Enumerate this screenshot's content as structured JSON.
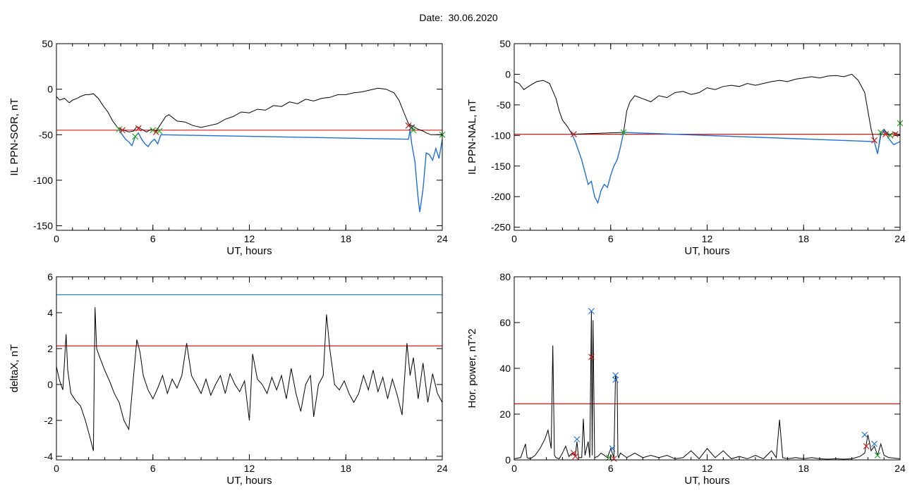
{
  "page": {
    "title": "Date:  30.06.2020"
  },
  "colors": {
    "black": "#000000",
    "blue": "#1f6fd6",
    "red": "#d41a1a",
    "green": "#22aa22",
    "teal": "#2a8aa8"
  },
  "chart_data": [
    {
      "type": "line",
      "xlabel": "UT, hours",
      "ylabel": "IL PPN-SOR, nT",
      "xlim": [
        0,
        24
      ],
      "ylim": [
        -155,
        50
      ],
      "xticks": [
        0,
        6,
        12,
        18,
        24
      ],
      "yticks": [
        -150,
        -100,
        -50,
        0,
        50
      ],
      "series": [
        {
          "color": "#000000",
          "x": [
            0,
            0.2,
            0.5,
            0.8,
            1.0,
            1.3,
            1.5,
            1.8,
            2.0,
            2.3,
            2.6,
            2.9,
            3.2,
            3.5,
            3.8,
            4.0,
            4.2,
            4.5,
            4.8,
            5.0,
            5.3,
            5.6,
            5.9,
            6.2,
            6.5,
            6.8,
            7.0,
            7.5,
            8.0,
            8.5,
            9.0,
            9.5,
            10.0,
            10.5,
            11.0,
            11.5,
            12.0,
            12.5,
            13.0,
            13.5,
            14.0,
            14.5,
            15.0,
            15.5,
            16.0,
            16.5,
            17.0,
            17.5,
            18.0,
            18.5,
            19.0,
            19.5,
            20.0,
            20.5,
            21.0,
            21.3,
            21.6,
            21.9,
            22.1,
            22.3,
            22.5,
            22.8,
            23.0,
            23.3,
            23.6,
            24.0
          ],
          "y": [
            -8,
            -12,
            -10,
            -15,
            -12,
            -10,
            -8,
            -6,
            -6,
            -5,
            -10,
            -18,
            -25,
            -35,
            -42,
            -44,
            -45,
            -47,
            -46,
            -41,
            -44,
            -47,
            -44,
            -46,
            -38,
            -30,
            -28,
            -35,
            -36,
            -40,
            -42,
            -40,
            -38,
            -33,
            -30,
            -25,
            -26,
            -22,
            -23,
            -18,
            -19,
            -14,
            -16,
            -11,
            -13,
            -10,
            -9,
            -6,
            -6,
            -4,
            -3,
            -1,
            1,
            0,
            -4,
            -12,
            -25,
            -38,
            -40,
            -42,
            -44,
            -46,
            -48,
            -50,
            -50,
            -50
          ]
        },
        {
          "color": "#1f6fd6",
          "x": [
            3.9,
            4.1,
            4.3,
            4.5,
            4.7,
            4.9,
            5.1,
            5.3,
            5.5,
            5.7,
            5.9,
            6.1,
            6.3,
            6.5,
            21.9,
            22.0,
            22.1,
            22.2,
            22.3,
            22.4,
            22.5,
            22.6,
            22.8,
            23.0,
            23.2,
            23.4,
            23.6,
            23.8,
            24.0
          ],
          "y": [
            -45,
            -50,
            -55,
            -58,
            -62,
            -52,
            -48,
            -55,
            -60,
            -63,
            -58,
            -55,
            -60,
            -50,
            -55,
            -45,
            -60,
            -70,
            -80,
            -100,
            -120,
            -135,
            -110,
            -70,
            -72,
            -78,
            -65,
            -76,
            -55
          ]
        }
      ],
      "hlines": [
        {
          "y": -45,
          "color": "#d41a1a"
        }
      ],
      "markers": [
        {
          "x": 3.9,
          "y": -44,
          "color": "#22aa22"
        },
        {
          "x": 4.1,
          "y": -45,
          "color": "#d41a1a"
        },
        {
          "x": 4.9,
          "y": -52,
          "color": "#22aa22"
        },
        {
          "x": 5.1,
          "y": -43,
          "color": "#d41a1a"
        },
        {
          "x": 6.0,
          "y": -45,
          "color": "#22aa22"
        },
        {
          "x": 6.2,
          "y": -47,
          "color": "#d41a1a"
        },
        {
          "x": 6.4,
          "y": -46,
          "color": "#22aa22"
        },
        {
          "x": 21.9,
          "y": -40,
          "color": "#d41a1a"
        },
        {
          "x": 22.1,
          "y": -42,
          "color": "#333333"
        },
        {
          "x": 22.2,
          "y": -45,
          "color": "#22aa22"
        },
        {
          "x": 24.0,
          "y": -50,
          "color": "#22aa22"
        }
      ]
    },
    {
      "type": "line",
      "xlabel": "UT, hours",
      "ylabel": "IL PPN-NAL, nT",
      "xlim": [
        0,
        24
      ],
      "ylim": [
        -255,
        50
      ],
      "xticks": [
        0,
        6,
        12,
        18,
        24
      ],
      "yticks": [
        -250,
        -200,
        -150,
        -100,
        -50,
        0,
        50
      ],
      "series": [
        {
          "color": "#000000",
          "x": [
            0,
            0.3,
            0.6,
            1.0,
            1.4,
            1.8,
            2.2,
            2.6,
            2.8,
            3.0,
            3.3,
            3.6,
            6.8,
            7.0,
            7.2,
            7.5,
            8.0,
            8.5,
            9.0,
            9.5,
            10.0,
            10.5,
            11.0,
            11.5,
            12.0,
            12.5,
            13.0,
            13.5,
            14.0,
            14.5,
            15.0,
            15.5,
            16.0,
            16.5,
            17.0,
            17.5,
            18.0,
            18.5,
            19.0,
            19.5,
            20.0,
            20.5,
            21.0,
            21.4,
            21.8,
            22.0,
            22.2,
            22.4,
            22.6,
            22.8,
            23.0,
            23.3,
            23.6,
            24.0
          ],
          "y": [
            -12,
            -15,
            -25,
            -18,
            -12,
            -10,
            -15,
            -40,
            -60,
            -75,
            -85,
            -98,
            -95,
            -60,
            -45,
            -35,
            -40,
            -45,
            -35,
            -38,
            -30,
            -28,
            -33,
            -30,
            -22,
            -25,
            -20,
            -18,
            -20,
            -15,
            -18,
            -15,
            -12,
            -10,
            -12,
            -8,
            -6,
            -4,
            -6,
            -3,
            -2,
            -4,
            0,
            -10,
            -30,
            -60,
            -90,
            -110,
            -130,
            -95,
            -90,
            -100,
            -95,
            -100
          ]
        },
        {
          "color": "#1f6fd6",
          "x": [
            3.6,
            3.8,
            4.0,
            4.2,
            4.4,
            4.6,
            4.8,
            5.0,
            5.2,
            5.4,
            5.6,
            5.8,
            6.0,
            6.2,
            6.4,
            6.6,
            6.8,
            22.4,
            22.6,
            22.8,
            23.0,
            23.3,
            23.6,
            24.0
          ],
          "y": [
            -98,
            -110,
            -125,
            -140,
            -160,
            -180,
            -175,
            -200,
            -210,
            -190,
            -180,
            -185,
            -165,
            -150,
            -140,
            -120,
            -95,
            -110,
            -130,
            -100,
            -92,
            -105,
            -115,
            -110
          ]
        }
      ],
      "hlines": [
        {
          "y": -98,
          "color": "#d41a1a"
        }
      ],
      "markers": [
        {
          "x": 3.7,
          "y": -98,
          "color": "#d41a1a"
        },
        {
          "x": 6.8,
          "y": -95,
          "color": "#22aa22"
        },
        {
          "x": 22.4,
          "y": -108,
          "color": "#d41a1a"
        },
        {
          "x": 22.8,
          "y": -95,
          "color": "#22aa22"
        },
        {
          "x": 23.1,
          "y": -98,
          "color": "#d41a1a"
        },
        {
          "x": 23.4,
          "y": -100,
          "color": "#22aa22"
        },
        {
          "x": 23.7,
          "y": -98,
          "color": "#d41a1a"
        },
        {
          "x": 24.0,
          "y": -80,
          "color": "#22aa22"
        }
      ]
    },
    {
      "type": "line",
      "xlabel": "UT, hours",
      "ylabel": "deltaX, nT",
      "xlim": [
        0,
        24
      ],
      "ylim": [
        -4.2,
        6
      ],
      "xticks": [
        0,
        6,
        12,
        18,
        24
      ],
      "yticks": [
        -4,
        -2,
        0,
        2,
        4,
        6
      ],
      "series": [
        {
          "color": "#000000",
          "x": [
            0,
            0.2,
            0.4,
            0.6,
            0.7,
            0.9,
            1.2,
            1.5,
            1.8,
            2.1,
            2.3,
            2.4,
            2.5,
            2.7,
            3.0,
            3.3,
            3.6,
            3.9,
            4.2,
            4.5,
            4.8,
            5.0,
            5.2,
            5.4,
            5.7,
            6.0,
            6.3,
            6.6,
            6.9,
            7.2,
            7.5,
            7.8,
            8.1,
            8.4,
            8.7,
            9.0,
            9.3,
            9.6,
            9.9,
            10.2,
            10.5,
            10.8,
            11.1,
            11.4,
            11.7,
            12.0,
            12.2,
            12.5,
            12.8,
            13.1,
            13.4,
            13.7,
            14.0,
            14.3,
            14.6,
            14.9,
            15.2,
            15.5,
            15.8,
            16.0,
            16.3,
            16.6,
            16.8,
            17.0,
            17.3,
            17.6,
            17.9,
            18.2,
            18.5,
            18.8,
            19.1,
            19.4,
            19.7,
            20.0,
            20.3,
            20.6,
            20.9,
            21.2,
            21.5,
            21.8,
            22.0,
            22.2,
            22.5,
            22.8,
            23.1,
            23.4,
            23.7,
            24.0
          ],
          "y": [
            1.0,
            0.2,
            -0.3,
            2.8,
            0.8,
            -0.5,
            -0.9,
            -1.2,
            -2.0,
            -3.0,
            -3.7,
            4.3,
            2.0,
            1.5,
            0.8,
            0.2,
            -0.5,
            -1.0,
            -2.0,
            -2.5,
            0.5,
            2.5,
            1.8,
            0.5,
            -0.3,
            -0.8,
            -0.2,
            0.5,
            -0.5,
            0.3,
            -0.2,
            0.5,
            2.3,
            0.5,
            0.0,
            -0.5,
            0.3,
            -0.6,
            0.0,
            0.5,
            -0.5,
            0.6,
            0.0,
            -0.4,
            0.2,
            -2.0,
            1.7,
            0.3,
            0.0,
            -0.5,
            0.4,
            -0.3,
            0.5,
            -0.8,
            0.9,
            -0.5,
            -1.5,
            0.0,
            0.5,
            -1.8,
            0.0,
            0.5,
            3.9,
            2.0,
            0.0,
            -0.3,
            0.2,
            -0.5,
            -1.0,
            -0.5,
            0.5,
            -0.3,
            0.8,
            -0.4,
            0.4,
            -0.8,
            0.3,
            -0.6,
            -1.7,
            2.3,
            0.5,
            1.5,
            -0.8,
            1.2,
            -1.0,
            0.6,
            -0.5,
            -1.0
          ]
        }
      ],
      "hlines": [
        {
          "y": 5.0,
          "color": "#2a8aa8"
        },
        {
          "y": 2.15,
          "color": "#d41a1a"
        }
      ],
      "markers": []
    },
    {
      "type": "line",
      "xlabel": "UT, hours",
      "ylabel": "Hor. power, nT^2",
      "xlim": [
        0,
        24
      ],
      "ylim": [
        0,
        80
      ],
      "xticks": [
        0,
        6,
        12,
        18,
        24
      ],
      "yticks": [
        0,
        20,
        40,
        60,
        80
      ],
      "series": [
        {
          "color": "#000000",
          "x": [
            0,
            0.4,
            0.7,
            0.8,
            1.0,
            1.3,
            1.6,
            1.9,
            2.1,
            2.3,
            2.4,
            2.5,
            2.6,
            2.8,
            3.0,
            3.2,
            3.4,
            3.6,
            3.8,
            3.9,
            4.0,
            4.2,
            4.3,
            4.4,
            4.6,
            4.7,
            4.8,
            4.85,
            4.9,
            5.0,
            5.2,
            5.4,
            5.6,
            5.8,
            6.0,
            6.2,
            6.3,
            6.4,
            6.45,
            6.5,
            6.6,
            6.8,
            7.0,
            7.5,
            8.0,
            8.5,
            9.0,
            9.5,
            10.0,
            10.5,
            11.0,
            11.5,
            12.0,
            12.5,
            13.0,
            13.5,
            14.0,
            14.5,
            15.0,
            15.5,
            16.0,
            16.3,
            16.5,
            16.7,
            17.0,
            17.5,
            18.0,
            18.5,
            19.0,
            19.5,
            20.0,
            20.5,
            21.0,
            21.5,
            21.8,
            22.0,
            22.2,
            22.4,
            22.6,
            22.8,
            23.0,
            23.3,
            23.6,
            24.0
          ],
          "y": [
            0.5,
            1.0,
            7.0,
            1.0,
            0.5,
            2.0,
            5.0,
            9.0,
            13.0,
            5.0,
            50.0,
            2.0,
            1.0,
            0.5,
            3.0,
            6.0,
            1.5,
            3.0,
            2.0,
            8.0,
            1.0,
            1.0,
            18.0,
            2.0,
            8.0,
            1.0,
            65.0,
            2.0,
            61.0,
            1.0,
            1.5,
            3.0,
            2.0,
            1.0,
            5.0,
            1.0,
            37.0,
            34.0,
            2.0,
            1.0,
            3.0,
            2.0,
            1.0,
            3.0,
            1.0,
            2.0,
            1.0,
            2.0,
            0.5,
            1.0,
            4.0,
            0.5,
            5.0,
            1.0,
            4.0,
            0.5,
            1.5,
            0.5,
            2.0,
            0.5,
            4.0,
            1.0,
            17.5,
            1.0,
            0.5,
            1.0,
            0.5,
            1.0,
            0.5,
            0.3,
            0.5,
            0.3,
            0.5,
            1.5,
            3.0,
            11.0,
            4.0,
            6.0,
            2.0,
            7.0,
            2.0,
            1.0,
            0.8,
            0.5
          ]
        }
      ],
      "hlines": [
        {
          "y": 24.5,
          "color": "#d41a1a"
        }
      ],
      "markers": [
        {
          "x": 3.9,
          "y": 9.0,
          "color": "#1f6fd6"
        },
        {
          "x": 3.7,
          "y": 3.0,
          "color": "#d41a1a"
        },
        {
          "x": 3.8,
          "y": 1.5,
          "color": "#d41a1a"
        },
        {
          "x": 4.8,
          "y": 65.0,
          "color": "#1f6fd6"
        },
        {
          "x": 4.8,
          "y": 45.0,
          "color": "#d41a1a"
        },
        {
          "x": 6.1,
          "y": 5.0,
          "color": "#1f6fd6"
        },
        {
          "x": 6.3,
          "y": 37.0,
          "color": "#1f6fd6"
        },
        {
          "x": 6.3,
          "y": 35.0,
          "color": "#1f6fd6"
        },
        {
          "x": 5.9,
          "y": 1.0,
          "color": "#22aa22"
        },
        {
          "x": 6.2,
          "y": 0.5,
          "color": "#d41a1a"
        },
        {
          "x": 21.8,
          "y": 11.0,
          "color": "#1f6fd6"
        },
        {
          "x": 21.9,
          "y": 6.0,
          "color": "#d41a1a"
        },
        {
          "x": 22.4,
          "y": 7.0,
          "color": "#1f6fd6"
        },
        {
          "x": 22.6,
          "y": 2.0,
          "color": "#22aa22"
        }
      ]
    }
  ]
}
